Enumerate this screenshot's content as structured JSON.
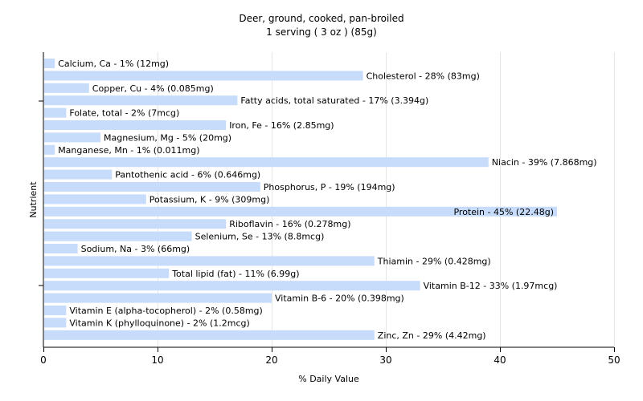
{
  "chart_data": {
    "type": "bar",
    "orientation": "horizontal",
    "title": "Deer, ground, cooked, pan-broiled",
    "subtitle": "1 serving ( 3 oz ) (85g)",
    "xlabel": "% Daily Value",
    "ylabel": "Nutrient",
    "xlim": [
      0,
      50
    ],
    "xticks": [
      0,
      10,
      20,
      30,
      40,
      50
    ],
    "grid": true,
    "bar_color": "#c6dcfa",
    "categories": [
      "Calcium, Ca",
      "Cholesterol",
      "Copper, Cu",
      "Fatty acids, total saturated",
      "Folate, total",
      "Iron, Fe",
      "Magnesium, Mg",
      "Manganese, Mn",
      "Niacin",
      "Pantothenic acid",
      "Phosphorus, P",
      "Potassium, K",
      "Protein",
      "Riboflavin",
      "Selenium, Se",
      "Sodium, Na",
      "Thiamin",
      "Total lipid (fat)",
      "Vitamin B-12",
      "Vitamin B-6",
      "Vitamin E (alpha-tocopherol)",
      "Vitamin K (phylloquinone)",
      "Zinc, Zn"
    ],
    "values": [
      1,
      28,
      4,
      17,
      2,
      16,
      5,
      1,
      39,
      6,
      19,
      9,
      45,
      16,
      13,
      3,
      29,
      11,
      33,
      20,
      2,
      2,
      29
    ],
    "labels": [
      "Calcium, Ca - 1% (12mg)",
      "Cholesterol - 28% (83mg)",
      "Copper, Cu - 4% (0.085mg)",
      "Fatty acids, total saturated - 17% (3.394g)",
      "Folate, total - 2% (7mcg)",
      "Iron, Fe - 16% (2.85mg)",
      "Magnesium, Mg - 5% (20mg)",
      "Manganese, Mn - 1% (0.011mg)",
      "Niacin - 39% (7.868mg)",
      "Pantothenic acid - 6% (0.646mg)",
      "Phosphorus, P - 19% (194mg)",
      "Potassium, K - 9% (309mg)",
      "Protein - 45% (22.48g)",
      "Riboflavin - 16% (0.278mg)",
      "Selenium, Se - 13% (8.8mcg)",
      "Sodium, Na - 3% (66mg)",
      "Thiamin - 29% (0.428mg)",
      "Total lipid (fat) - 11% (6.99g)",
      "Vitamin B-12 - 33% (1.97mcg)",
      "Vitamin B-6 - 20% (0.398mg)",
      "Vitamin E (alpha-tocopherol) - 2% (0.58mg)",
      "Vitamin K (phylloquinone) - 2% (1.2mcg)",
      "Zinc, Zn - 29% (4.42mg)"
    ]
  }
}
